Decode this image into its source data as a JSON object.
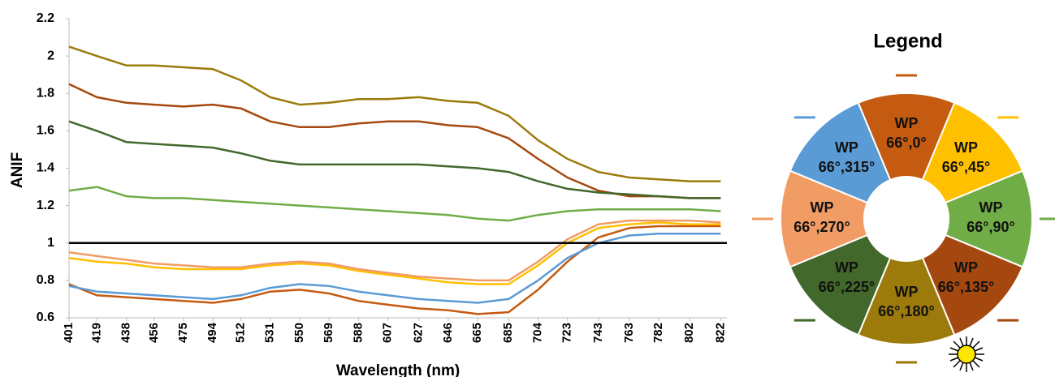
{
  "chart_data": {
    "type": "line",
    "x_label": "Wavelength (nm)",
    "y_label": "ANIF",
    "legend_title": "Legend",
    "x": [
      401,
      419,
      438,
      456,
      475,
      494,
      512,
      531,
      550,
      569,
      588,
      607,
      627,
      646,
      665,
      685,
      704,
      723,
      743,
      763,
      782,
      802,
      822
    ],
    "xticks": [
      401,
      419,
      438,
      456,
      475,
      494,
      512,
      531,
      550,
      569,
      588,
      607,
      627,
      646,
      665,
      685,
      704,
      723,
      743,
      763,
      782,
      802,
      822
    ],
    "xlim": [
      401,
      826
    ],
    "ylim": [
      0.6,
      2.2
    ],
    "yticks": [
      0.6,
      0.8,
      1,
      1.2,
      1.4,
      1.6,
      1.8,
      2,
      2.2
    ],
    "reference_line": 1,
    "series": [
      {
        "name": "WP 66°,0°",
        "color": "#c55a11",
        "values": [
          0.78,
          0.72,
          0.71,
          0.7,
          0.69,
          0.68,
          0.7,
          0.74,
          0.75,
          0.73,
          0.69,
          0.67,
          0.65,
          0.64,
          0.62,
          0.63,
          0.75,
          0.9,
          1.03,
          1.08,
          1.09,
          1.09,
          1.09
        ]
      },
      {
        "name": "WP 66°,45°",
        "color": "#ffc000",
        "values": [
          0.92,
          0.9,
          0.89,
          0.87,
          0.86,
          0.86,
          0.86,
          0.88,
          0.89,
          0.88,
          0.85,
          0.83,
          0.81,
          0.79,
          0.78,
          0.78,
          0.88,
          1.0,
          1.08,
          1.1,
          1.11,
          1.1,
          1.1
        ]
      },
      {
        "name": "WP 66°,90°",
        "color": "#70ad47",
        "values": [
          1.28,
          1.3,
          1.25,
          1.24,
          1.24,
          1.23,
          1.22,
          1.21,
          1.2,
          1.19,
          1.18,
          1.17,
          1.16,
          1.15,
          1.13,
          1.12,
          1.15,
          1.17,
          1.18,
          1.18,
          1.18,
          1.18,
          1.17
        ]
      },
      {
        "name": "WP 66°,135°",
        "color": "#a5480f",
        "values": [
          1.85,
          1.78,
          1.75,
          1.74,
          1.73,
          1.74,
          1.72,
          1.65,
          1.62,
          1.62,
          1.64,
          1.65,
          1.65,
          1.63,
          1.62,
          1.56,
          1.45,
          1.35,
          1.28,
          1.25,
          1.25,
          1.24,
          1.24
        ]
      },
      {
        "name": "WP 66°,180°",
        "color": "#9c7a0b",
        "values": [
          2.05,
          2.0,
          1.95,
          1.95,
          1.94,
          1.93,
          1.87,
          1.78,
          1.74,
          1.75,
          1.77,
          1.77,
          1.78,
          1.76,
          1.75,
          1.68,
          1.55,
          1.45,
          1.38,
          1.35,
          1.34,
          1.33,
          1.33
        ]
      },
      {
        "name": "WP 66°,225°",
        "color": "#43682b",
        "values": [
          1.65,
          1.6,
          1.54,
          1.53,
          1.52,
          1.51,
          1.48,
          1.44,
          1.42,
          1.42,
          1.42,
          1.42,
          1.42,
          1.41,
          1.4,
          1.38,
          1.33,
          1.29,
          1.27,
          1.26,
          1.25,
          1.24,
          1.24
        ]
      },
      {
        "name": "WP 66°,270°",
        "color": "#f19c65",
        "values": [
          0.95,
          0.93,
          0.91,
          0.89,
          0.88,
          0.87,
          0.87,
          0.89,
          0.9,
          0.89,
          0.86,
          0.84,
          0.82,
          0.81,
          0.8,
          0.8,
          0.9,
          1.02,
          1.1,
          1.12,
          1.12,
          1.12,
          1.11
        ]
      },
      {
        "name": "WP 66°,315°",
        "color": "#5b9bd5",
        "values": [
          0.77,
          0.74,
          0.73,
          0.72,
          0.71,
          0.7,
          0.72,
          0.76,
          0.78,
          0.77,
          0.74,
          0.72,
          0.7,
          0.69,
          0.68,
          0.7,
          0.8,
          0.92,
          1.0,
          1.04,
          1.05,
          1.05,
          1.05
        ]
      }
    ]
  }
}
